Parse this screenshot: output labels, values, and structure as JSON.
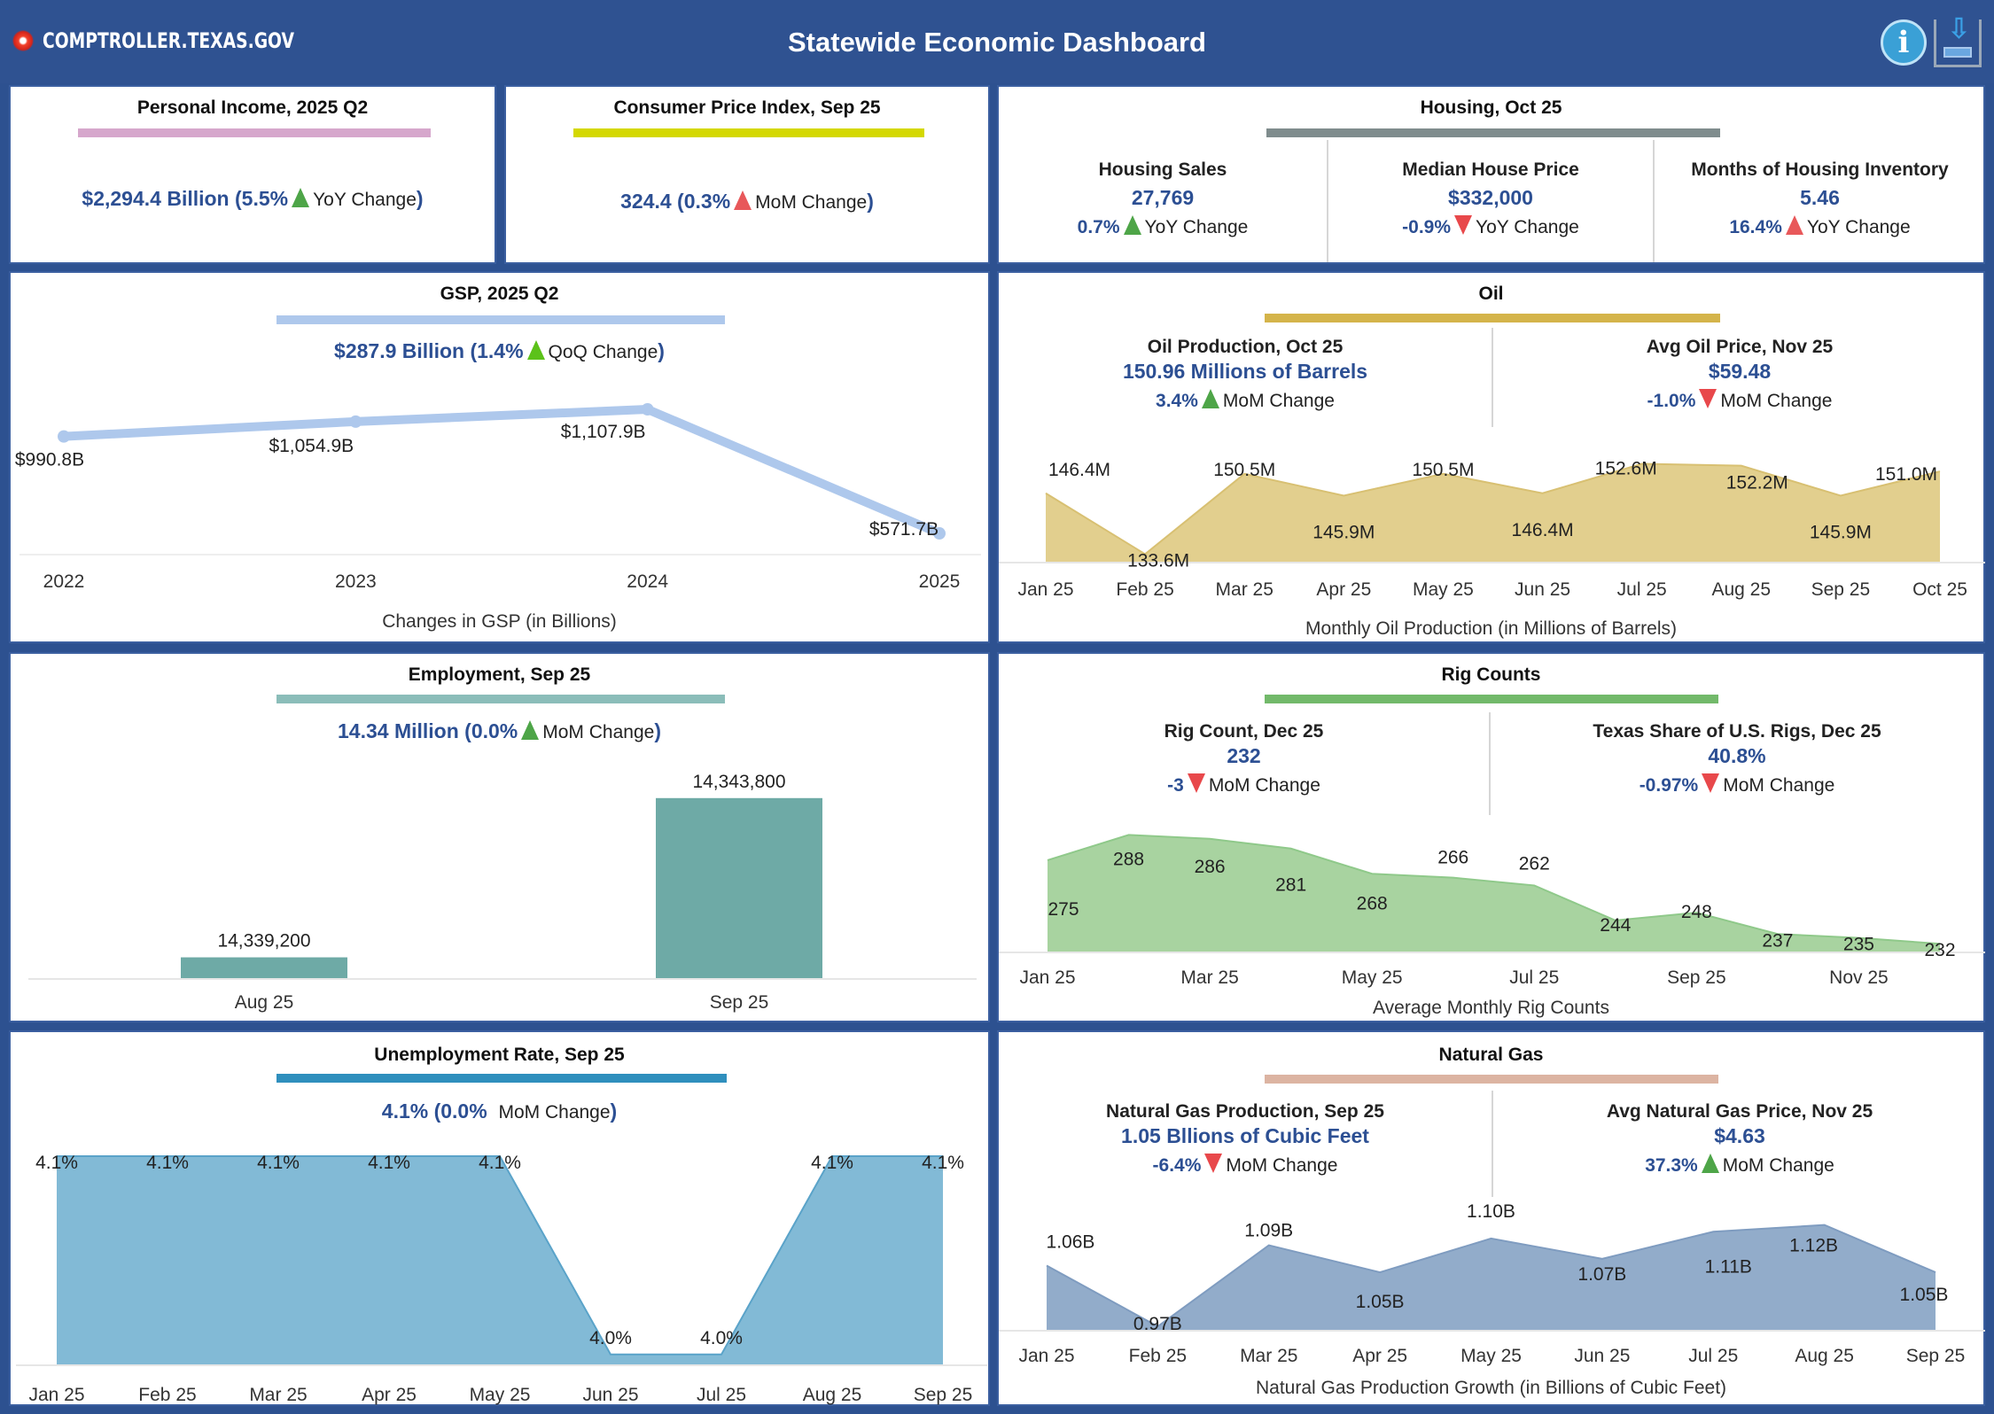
{
  "header": {
    "logo_text": "COMPTROLLER.TEXAS.GOV",
    "title": "Statewide Economic Dashboard",
    "info_icon": "info-icon",
    "download_icon": "download-icon"
  },
  "colors": {
    "header_bg": "#2f5291",
    "kpi_blue": "#2c4f93",
    "up_green": "#4ea548",
    "up_red": "#e8585a",
    "down_red": "#e8484b"
  },
  "personal_income": {
    "title": "Personal Income, 2025 Q2",
    "bar_color": "#d6a7cc",
    "value": "$2,294.4 Billion (5.5%",
    "direction": "up",
    "change_label": "YoY Change",
    "close": ")"
  },
  "cpi": {
    "title": "Consumer Price Index, Sep 25",
    "bar_color": "#d4d800",
    "value": "324.4 (0.3%",
    "direction": "up",
    "change_label": "MoM Change",
    "close": ")"
  },
  "housing": {
    "title": "Housing, Oct 25",
    "bar_color": "#7f8c8d",
    "metrics": [
      {
        "title": "Housing Sales",
        "value": "27,769",
        "change": "0.7%",
        "direction": "up",
        "change_label": "YoY Change"
      },
      {
        "title": "Median House Price",
        "value": "$332,000",
        "change": "-0.9%",
        "direction": "down",
        "change_label": "YoY Change"
      },
      {
        "title": "Months of Housing Inventory",
        "value": "5.46",
        "change": "16.4%",
        "direction": "up",
        "change_label": "YoY Change"
      }
    ]
  },
  "gsp": {
    "title": "GSP,  2025 Q2",
    "bar_color": "#aec8ec",
    "value": "$287.9 Billion (1.4%",
    "direction": "up",
    "change_label": "QoQ Change",
    "close": ")"
  },
  "oil": {
    "title": "Oil",
    "bar_color": "#d4b44a",
    "metrics": [
      {
        "title": "Oil Production, Oct 25",
        "value": "150.96 Millions of Barrels",
        "change": "3.4%",
        "direction": "up",
        "change_label": "MoM Change"
      },
      {
        "title": "Avg Oil Price, Nov 25",
        "value": "$59.48",
        "change": "-1.0%",
        "direction": "down",
        "change_label": "MoM Change"
      }
    ]
  },
  "employment": {
    "title": "Employment, Sep 25",
    "bar_color": "#8bbdb9",
    "value": "14.34 Million (0.0%",
    "direction": "up",
    "change_label": "MoM Change",
    "close": ")"
  },
  "rigs": {
    "title": "Rig Counts",
    "bar_color": "#72b96a",
    "metrics": [
      {
        "title": "Rig Count, Dec 25",
        "value": "232",
        "change": "-3",
        "direction": "down",
        "change_label": "MoM Change"
      },
      {
        "title": "Texas Share of U.S. Rigs, Dec 25",
        "value": "40.8%",
        "change": "-0.97%",
        "direction": "down",
        "change_label": "MoM Change"
      }
    ]
  },
  "unemployment": {
    "title": "Unemployment Rate, Sep 25",
    "bar_color": "#2f8fbd",
    "value": "4.1% (0.0%",
    "change_label": "MoM Change",
    "close": ")"
  },
  "natgas": {
    "title": "Natural Gas",
    "bar_color": "#dcb4a2",
    "metrics": [
      {
        "title": "Natural Gas Production,  Sep 25",
        "value": "1.05 Bllions of Cubic Feet",
        "change": "-6.4%",
        "direction": "down",
        "change_label": "MoM Change"
      },
      {
        "title": "Avg Natural Gas Price, Nov 25",
        "value": "$4.63",
        "change": "37.3%",
        "direction": "up",
        "change_label": "MoM Change"
      }
    ]
  },
  "chart_data": [
    {
      "id": "gsp",
      "type": "line",
      "title": "GSP,  2025 Q2",
      "xlabel": "Changes in GSP (in Billions)",
      "categories": [
        "2022",
        "2023",
        "2024",
        "2025"
      ],
      "values": [
        990.8,
        1054.9,
        1107.9,
        571.7
      ],
      "labels": [
        "$990.8B",
        "$1,054.9B",
        "$1,107.9B",
        "$571.7B"
      ],
      "ylim": [
        480,
        1200
      ],
      "color": "#aec8ec",
      "grid": false
    },
    {
      "id": "oil",
      "type": "area",
      "xlabel": "Monthly Oil Production (in Millions of Barrels)",
      "categories": [
        "Jan 25",
        "Feb 25",
        "Mar 25",
        "Apr 25",
        "May 25",
        "Jun 25",
        "Jul 25",
        "Aug 25",
        "Sep 25",
        "Oct 25"
      ],
      "values": [
        146.4,
        133.6,
        150.5,
        145.9,
        150.5,
        146.4,
        152.6,
        152.2,
        145.9,
        151.0
      ],
      "labels": [
        "146.4M",
        "133.6M",
        "150.5M",
        "145.9M",
        "150.5M",
        "146.4M",
        "152.6M",
        "152.2M",
        "145.9M",
        "151.0M"
      ],
      "ylim": [
        132,
        154
      ],
      "color": "#e2cf8e",
      "grid": false
    },
    {
      "id": "employment",
      "type": "bar",
      "categories": [
        "Aug 25",
        "Sep 25"
      ],
      "values": [
        14339200,
        14343800
      ],
      "labels": [
        "14,339,200",
        "14,343,800"
      ],
      "ylim": [
        14338600,
        14344000
      ],
      "color": "#6eaaa6",
      "grid": false
    },
    {
      "id": "rigs",
      "type": "area",
      "xlabel": "Average Monthly Rig Counts",
      "categories": [
        "Jan 25",
        "Feb 25",
        "Mar 25",
        "Apr 25",
        "May 25",
        "Jun 25",
        "Jul 25",
        "Aug 25",
        "Sep 25",
        "Oct 25",
        "Nov 25",
        "Dec 25"
      ],
      "tick_labels": [
        "Jan 25",
        "",
        "Mar 25",
        "",
        "May 25",
        "",
        "Jul 25",
        "",
        "Sep 25",
        "",
        "Nov 25",
        ""
      ],
      "values": [
        275,
        288,
        286,
        281,
        268,
        266,
        262,
        244,
        248,
        237,
        235,
        232
      ],
      "labels": [
        "275",
        "288",
        "286",
        "281",
        "268",
        "266",
        "262",
        "244",
        "248",
        "237",
        "235",
        "232"
      ],
      "ylim": [
        228,
        290
      ],
      "color": "#a8d3a0",
      "grid": false
    },
    {
      "id": "unemployment",
      "type": "area",
      "categories": [
        "Jan 25",
        "Feb 25",
        "Mar 25",
        "Apr 25",
        "May 25",
        "Jun 25",
        "Jul 25",
        "Aug 25",
        "Sep 25"
      ],
      "values": [
        4.1,
        4.1,
        4.1,
        4.1,
        4.1,
        4.0,
        4.0,
        4.1,
        4.1
      ],
      "labels": [
        "4.1%",
        "4.1%",
        "4.1%",
        "4.1%",
        "4.1%",
        "4.0%",
        "4.0%",
        "4.1%",
        "4.1%"
      ],
      "ylim": [
        3.995,
        4.1
      ],
      "color": "#82bad6",
      "grid": false
    },
    {
      "id": "natgas",
      "type": "area",
      "xlabel": "Natural Gas Production Growth (in Billions of Cubic Feet)",
      "categories": [
        "Jan 25",
        "Feb 25",
        "Mar 25",
        "Apr 25",
        "May 25",
        "Jun 25",
        "Jul 25",
        "Aug 25",
        "Sep 25"
      ],
      "values": [
        1.06,
        0.97,
        1.09,
        1.05,
        1.1,
        1.07,
        1.11,
        1.12,
        1.05
      ],
      "labels": [
        "1.06B",
        "0.97B",
        "1.09B",
        "1.05B",
        "1.10B",
        "1.07B",
        "1.11B",
        "1.12B",
        "1.05B"
      ],
      "ylim": [
        0.965,
        1.13
      ],
      "color": "#92acca",
      "grid": false
    }
  ]
}
